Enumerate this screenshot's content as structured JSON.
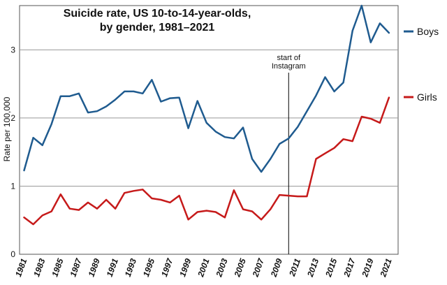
{
  "chart_data": {
    "type": "line",
    "title_lines": [
      "Suicide rate, US 10-to-14-year-olds,",
      "by gender, 1981–2021"
    ],
    "ylabel": "Rate per 100,000",
    "xlabel": "",
    "ylim": [
      0,
      3.65
    ],
    "xlim": [
      1980.5,
      2022
    ],
    "yticks": [
      0,
      1,
      2,
      3
    ],
    "xticks": [
      "1981",
      "1983",
      "1985",
      "1987",
      "1989",
      "1991",
      "1993",
      "1995",
      "1997",
      "1999",
      "2001",
      "2003",
      "2005",
      "2007",
      "2009",
      "2011",
      "2013",
      "2015",
      "2017",
      "2019",
      "2021"
    ],
    "grid": "horizontal",
    "legend": "right, at line ends",
    "annotation": {
      "x": 2010,
      "lines": [
        "start of",
        "Instagram"
      ]
    },
    "x": [
      1981,
      1982,
      1983,
      1984,
      1985,
      1986,
      1987,
      1988,
      1989,
      1990,
      1991,
      1992,
      1993,
      1994,
      1995,
      1996,
      1997,
      1998,
      1999,
      2000,
      2001,
      2002,
      2003,
      2004,
      2005,
      2006,
      2007,
      2008,
      2009,
      2010,
      2011,
      2012,
      2013,
      2014,
      2015,
      2016,
      2017,
      2018,
      2019,
      2020,
      2021
    ],
    "series": [
      {
        "name": "Boys",
        "color": "#1f5b8f",
        "values": [
          1.23,
          1.71,
          1.6,
          1.91,
          2.32,
          2.32,
          2.36,
          2.08,
          2.1,
          2.17,
          2.27,
          2.39,
          2.39,
          2.36,
          2.56,
          2.24,
          2.29,
          2.3,
          1.85,
          2.25,
          1.93,
          1.8,
          1.72,
          1.7,
          1.86,
          1.4,
          1.21,
          1.4,
          1.62,
          1.7,
          1.87,
          2.1,
          2.33,
          2.6,
          2.39,
          2.52,
          3.28,
          3.65,
          3.11,
          3.39,
          3.25
        ]
      },
      {
        "name": "Girls",
        "color": "#c61a1a",
        "values": [
          0.54,
          0.44,
          0.57,
          0.63,
          0.88,
          0.67,
          0.65,
          0.76,
          0.67,
          0.8,
          0.67,
          0.9,
          0.93,
          0.95,
          0.82,
          0.8,
          0.76,
          0.86,
          0.51,
          0.62,
          0.64,
          0.62,
          0.54,
          0.94,
          0.66,
          0.63,
          0.51,
          0.66,
          0.87,
          0.86,
          0.85,
          0.85,
          1.4,
          1.48,
          1.56,
          1.69,
          1.66,
          2.02,
          1.99,
          1.93,
          2.3
        ]
      }
    ]
  }
}
